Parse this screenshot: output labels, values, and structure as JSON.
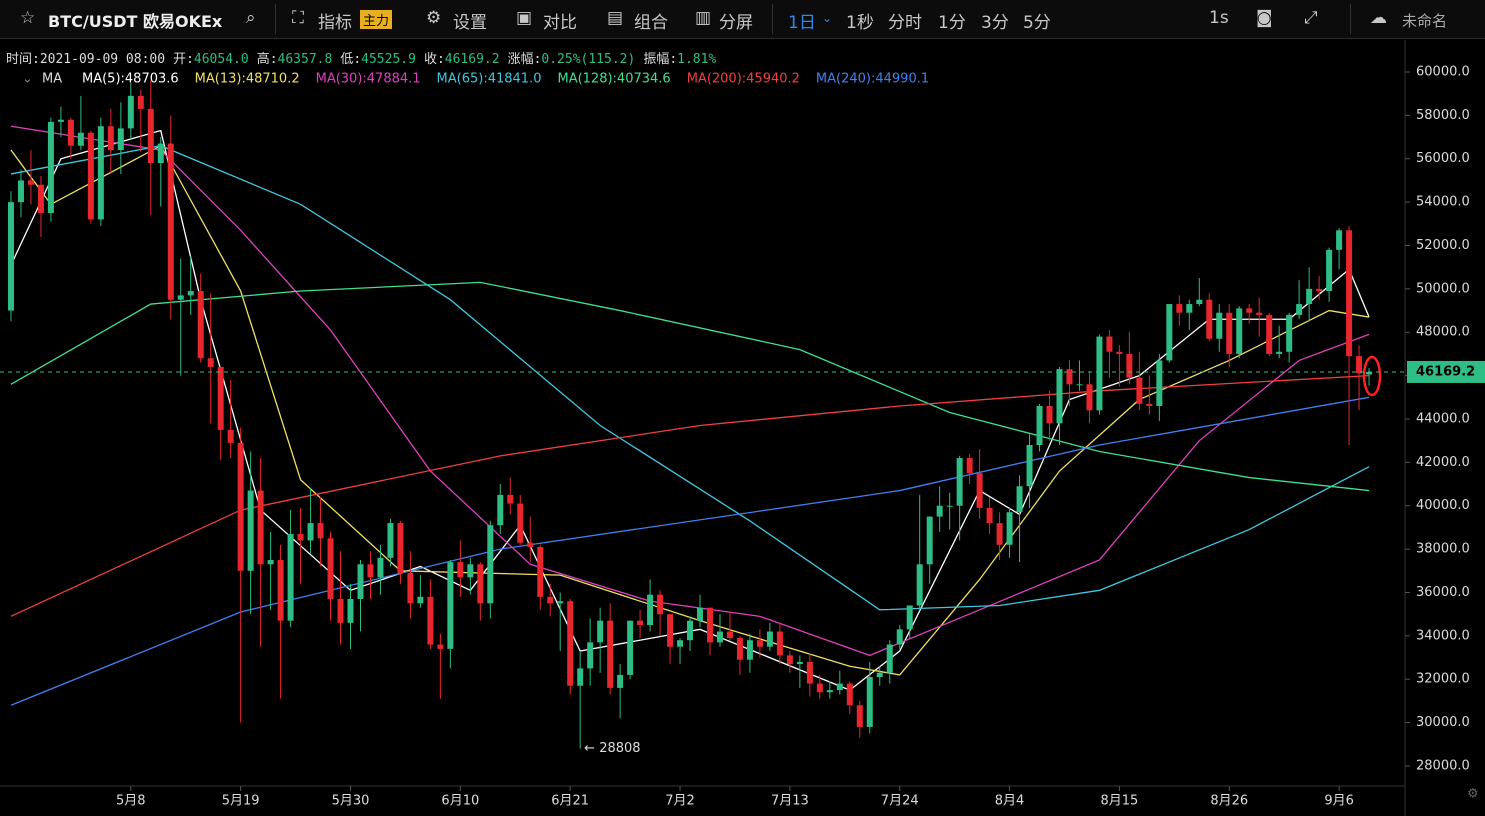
{
  "toolbar": {
    "symbol": "BTC/USDT 欧易OKEx",
    "items": [
      "指标",
      "设置",
      "对比",
      "组合",
      "分屏"
    ],
    "badge": "主力",
    "intervals": [
      "1日",
      "1秒",
      "分时",
      "1分",
      "3分",
      "5分"
    ],
    "speed": "1s",
    "layout_name": "未命名"
  },
  "info": [
    {
      "label": "时间:",
      "value": "2021-09-09 08:00"
    },
    {
      "label": "开:",
      "value": "46054.0"
    },
    {
      "label": "高:",
      "value": "46357.8"
    },
    {
      "label": "低:",
      "value": "45525.9"
    },
    {
      "label": "收:",
      "value": "46169.2"
    },
    {
      "label": "涨幅:",
      "value": "0.25%(115.2)"
    },
    {
      "label": "振幅:",
      "value": "1.81%"
    }
  ],
  "chart_data": {
    "type": "candlestick",
    "indicator": "MA",
    "up_color": "#2ebd85",
    "down_color": "#e8262d",
    "xlim": [
      -1.1,
      139.6
    ],
    "ylim": [
      27077,
      61291
    ],
    "xticks": [
      {
        "value": 12,
        "label": "5月8"
      },
      {
        "value": 23,
        "label": "5月19"
      },
      {
        "value": 34,
        "label": "5月30"
      },
      {
        "value": 45,
        "label": "6月10"
      },
      {
        "value": 56,
        "label": "6月21"
      },
      {
        "value": 67,
        "label": "7月2"
      },
      {
        "value": 78,
        "label": "7月13"
      },
      {
        "value": 89,
        "label": "7月24"
      },
      {
        "value": 100,
        "label": "8月4"
      },
      {
        "value": 111,
        "label": "8月15"
      },
      {
        "value": 122,
        "label": "8月26"
      },
      {
        "value": 133,
        "label": "9月6"
      }
    ],
    "yticks": [
      {
        "value": 28000,
        "label": "28000.0"
      },
      {
        "value": 30000,
        "label": "30000.0"
      },
      {
        "value": 32000,
        "label": "32000.0"
      },
      {
        "value": 34000,
        "label": "34000.0"
      },
      {
        "value": 36000,
        "label": "36000.0"
      },
      {
        "value": 38000,
        "label": "38000.0"
      },
      {
        "value": 40000,
        "label": "40000.0"
      },
      {
        "value": 42000,
        "label": "42000.0"
      },
      {
        "value": 44000,
        "label": "44000.0"
      },
      {
        "value": 46000,
        "label": "46000.0"
      },
      {
        "value": 48000,
        "label": "48000.0"
      },
      {
        "value": 50000,
        "label": "50000.0"
      },
      {
        "value": 52000,
        "label": "52000.0"
      },
      {
        "value": 54000,
        "label": "54000.0"
      },
      {
        "value": 56000,
        "label": "56000.0"
      },
      {
        "value": 58000,
        "label": "58000.0"
      },
      {
        "value": 60000,
        "label": "60000.0"
      }
    ],
    "candles": [
      [
        49000,
        54500,
        48500,
        54000
      ],
      [
        54000,
        55500,
        53300,
        55000
      ],
      [
        55000,
        56400,
        53900,
        54800
      ],
      [
        54800,
        55200,
        52400,
        53500
      ],
      [
        53500,
        57900,
        53100,
        57700
      ],
      [
        57700,
        58400,
        57000,
        57800
      ],
      [
        57800,
        57900,
        56000,
        56600
      ],
      [
        56600,
        58900,
        56400,
        57200
      ],
      [
        57200,
        57300,
        53000,
        53200
      ],
      [
        53200,
        57900,
        52900,
        57500
      ],
      [
        57500,
        58300,
        55300,
        56400
      ],
      [
        56400,
        58600,
        55300,
        57400
      ],
      [
        57400,
        59500,
        56900,
        58900
      ],
      [
        58900,
        59200,
        56300,
        58300
      ],
      [
        58300,
        59600,
        53400,
        55800
      ],
      [
        55800,
        57000,
        53800,
        56700
      ],
      [
        56700,
        58000,
        48600,
        49500
      ],
      [
        49500,
        51400,
        46000,
        49700
      ],
      [
        49700,
        51500,
        48800,
        49900
      ],
      [
        49900,
        50700,
        46600,
        46800
      ],
      [
        46800,
        49800,
        43800,
        46400
      ],
      [
        46400,
        46400,
        42100,
        43500
      ],
      [
        43500,
        45800,
        42200,
        42900
      ],
      [
        42900,
        43600,
        30000,
        37000
      ],
      [
        37000,
        42500,
        35000,
        40700
      ],
      [
        40700,
        42200,
        33500,
        37300
      ],
      [
        37300,
        38800,
        35200,
        37500
      ],
      [
        37500,
        38200,
        31100,
        34700
      ],
      [
        34700,
        39800,
        34400,
        38700
      ],
      [
        38700,
        39900,
        36400,
        38400
      ],
      [
        38400,
        40800,
        37800,
        39200
      ],
      [
        39200,
        40400,
        37200,
        38500
      ],
      [
        38500,
        38800,
        34700,
        35700
      ],
      [
        35700,
        37900,
        33600,
        34600
      ],
      [
        34600,
        36400,
        33400,
        35700
      ],
      [
        35700,
        37500,
        34200,
        37300
      ],
      [
        37300,
        37900,
        35700,
        36700
      ],
      [
        36700,
        38200,
        35900,
        37600
      ],
      [
        37600,
        39400,
        37200,
        39200
      ],
      [
        39200,
        39300,
        36400,
        36900
      ],
      [
        36900,
        37900,
        34800,
        35500
      ],
      [
        35500,
        36800,
        35300,
        35800
      ],
      [
        35800,
        36600,
        33400,
        33600
      ],
      [
        33600,
        34100,
        31100,
        33400
      ],
      [
        33400,
        37500,
        32500,
        37400
      ],
      [
        37400,
        38400,
        35800,
        36700
      ],
      [
        36700,
        37600,
        35900,
        37300
      ],
      [
        37300,
        37400,
        34700,
        35500
      ],
      [
        35500,
        39300,
        34800,
        39100
      ],
      [
        39100,
        41000,
        38700,
        40500
      ],
      [
        40500,
        41300,
        39600,
        40100
      ],
      [
        40100,
        40500,
        38200,
        38300
      ],
      [
        38300,
        39500,
        37400,
        38100
      ],
      [
        38100,
        38200,
        35200,
        35800
      ],
      [
        35800,
        36400,
        34900,
        35500
      ],
      [
        35500,
        36000,
        33300,
        35600
      ],
      [
        35600,
        35700,
        31300,
        31700
      ],
      [
        31700,
        33300,
        28808,
        32500
      ],
      [
        32500,
        34800,
        31700,
        33700
      ],
      [
        33700,
        35300,
        32300,
        34700
      ],
      [
        34700,
        35500,
        31300,
        31600
      ],
      [
        31600,
        32700,
        30200,
        32200
      ],
      [
        32200,
        34700,
        32000,
        34700
      ],
      [
        34700,
        35200,
        33900,
        34500
      ],
      [
        34500,
        36600,
        34200,
        35900
      ],
      [
        35900,
        36100,
        34000,
        35000
      ],
      [
        35000,
        35000,
        32700,
        33500
      ],
      [
        33500,
        33900,
        32700,
        33800
      ],
      [
        33800,
        34900,
        33300,
        34700
      ],
      [
        34700,
        35900,
        34400,
        35300
      ],
      [
        35300,
        35300,
        33100,
        33700
      ],
      [
        33700,
        35000,
        33500,
        34200
      ],
      [
        34200,
        35100,
        33800,
        33900
      ],
      [
        33900,
        34000,
        32200,
        32900
      ],
      [
        32900,
        34100,
        32300,
        33800
      ],
      [
        33800,
        34300,
        33000,
        33500
      ],
      [
        33500,
        34600,
        33300,
        34200
      ],
      [
        34200,
        34600,
        32700,
        33100
      ],
      [
        33100,
        33300,
        32300,
        32700
      ],
      [
        32700,
        33100,
        31600,
        32800
      ],
      [
        32800,
        33200,
        31200,
        31800
      ],
      [
        31800,
        32200,
        31100,
        31400
      ],
      [
        31400,
        31900,
        31100,
        31500
      ],
      [
        31500,
        32400,
        31300,
        31800
      ],
      [
        31800,
        31900,
        30400,
        30800
      ],
      [
        30800,
        31000,
        29300,
        29800
      ],
      [
        29800,
        32800,
        29500,
        32100
      ],
      [
        32100,
        32600,
        31700,
        32300
      ],
      [
        32300,
        33800,
        31800,
        33600
      ],
      [
        33600,
        34500,
        33400,
        34300
      ],
      [
        34300,
        35400,
        33900,
        35400
      ],
      [
        35400,
        40500,
        35200,
        37300
      ],
      [
        37300,
        39500,
        36400,
        39500
      ],
      [
        39500,
        40900,
        38800,
        40000
      ],
      [
        40000,
        40600,
        38900,
        40000
      ],
      [
        40000,
        42300,
        38400,
        42200
      ],
      [
        42200,
        42400,
        41000,
        41500
      ],
      [
        41500,
        42600,
        39400,
        39900
      ],
      [
        39900,
        40400,
        38700,
        39200
      ],
      [
        39200,
        39700,
        37500,
        38200
      ],
      [
        38200,
        39900,
        37600,
        39700
      ],
      [
        39700,
        41400,
        37400,
        40900
      ],
      [
        40900,
        43300,
        39900,
        42800
      ],
      [
        42800,
        44700,
        42500,
        44600
      ],
      [
        44600,
        45300,
        43000,
        43800
      ],
      [
        43800,
        46400,
        42800,
        46300
      ],
      [
        46300,
        46700,
        44600,
        45600
      ],
      [
        45600,
        46700,
        45300,
        45600
      ],
      [
        45600,
        46200,
        43800,
        44400
      ],
      [
        44400,
        47900,
        44200,
        47800
      ],
      [
        47800,
        48100,
        45900,
        47100
      ],
      [
        47100,
        47400,
        45500,
        47000
      ],
      [
        47000,
        48000,
        45600,
        45900
      ],
      [
        45900,
        47100,
        44400,
        44700
      ],
      [
        44700,
        46000,
        44200,
        44600
      ],
      [
        44600,
        47000,
        43900,
        46700
      ],
      [
        46700,
        49300,
        46600,
        49300
      ],
      [
        49300,
        49700,
        48300,
        48900
      ],
      [
        48900,
        49500,
        48100,
        49300
      ],
      [
        49300,
        50500,
        49200,
        49500
      ],
      [
        49500,
        49800,
        47600,
        47700
      ],
      [
        47700,
        49300,
        47100,
        48900
      ],
      [
        48900,
        49300,
        46400,
        47000
      ],
      [
        47000,
        49200,
        46800,
        49100
      ],
      [
        49100,
        49300,
        48400,
        48900
      ],
      [
        48900,
        49600,
        47800,
        48800
      ],
      [
        48800,
        48900,
        46900,
        47000
      ],
      [
        47000,
        48300,
        46800,
        47100
      ],
      [
        47100,
        48900,
        46600,
        48800
      ],
      [
        48800,
        50400,
        48600,
        49300
      ],
      [
        49300,
        51000,
        48500,
        50000
      ],
      [
        50000,
        50600,
        49500,
        49900
      ],
      [
        49900,
        51900,
        49400,
        51800
      ],
      [
        51800,
        52800,
        50900,
        52700
      ],
      [
        52700,
        52900,
        42800,
        46900
      ],
      [
        46900,
        47400,
        44400,
        46100
      ],
      [
        46054.0,
        46357.8,
        45525.9,
        46169.2
      ]
    ],
    "series": [
      {
        "name": "MA(5)",
        "label": "MA(5):48703.6",
        "color": "#ffffff",
        "x": [
          0,
          5,
          15,
          19,
          25,
          34,
          41,
          46,
          51,
          57,
          69,
          84,
          89,
          97,
          101,
          106,
          113,
          120,
          128,
          134,
          136
        ],
        "values": [
          51100,
          56000,
          57300,
          49500,
          39800,
          36100,
          37200,
          36100,
          39100,
          33300,
          34300,
          31500,
          33300,
          40700,
          39600,
          44900,
          46000,
          48600,
          48600,
          50900,
          48700
        ]
      },
      {
        "name": "MA(13)",
        "label": "MA(13):48710.2",
        "color": "#f0e060",
        "x": [
          0,
          4,
          15,
          23,
          29,
          39,
          55,
          69,
          84,
          89,
          97,
          105,
          113,
          122,
          132,
          136
        ],
        "values": [
          56400,
          53900,
          56600,
          49900,
          41200,
          37000,
          36800,
          34700,
          32600,
          32200,
          36600,
          41600,
          44900,
          46700,
          49000,
          48700
        ]
      },
      {
        "name": "MA(30)",
        "label": "MA(30):47884.1",
        "color": "#e040c0",
        "x": [
          0,
          15,
          23,
          32,
          42,
          52,
          64,
          75,
          86,
          97,
          109,
          119,
          129,
          136
        ],
        "values": [
          57500,
          56400,
          52700,
          48100,
          41600,
          37300,
          35600,
          34900,
          33100,
          35200,
          37500,
          43000,
          46700,
          47900
        ]
      },
      {
        "name": "MA(65)",
        "label": "MA(65):41841.0",
        "color": "#40c8e0",
        "x": [
          0,
          15,
          29,
          44,
          59,
          74,
          87,
          99,
          109,
          124,
          136
        ],
        "values": [
          55300,
          56600,
          53900,
          49500,
          43700,
          39300,
          35200,
          35400,
          36100,
          38900,
          41800
        ]
      },
      {
        "name": "MA(128)",
        "label": "MA(128):40734.6",
        "color": "#40e090",
        "x": [
          0,
          14,
          29,
          47,
          61,
          79,
          94,
          109,
          124,
          136
        ],
        "values": [
          45600,
          49300,
          49900,
          50300,
          49000,
          47200,
          44300,
          42500,
          41300,
          40700
        ]
      },
      {
        "name": "MA(200)",
        "label": "MA(200):45940.2",
        "color": "#f04040",
        "x": [
          0,
          23,
          49,
          69,
          89,
          109,
          136
        ],
        "values": [
          34900,
          39800,
          42300,
          43700,
          44600,
          45300,
          46000
        ]
      },
      {
        "name": "MA(240)",
        "label": "MA(240):44990.1",
        "color": "#4080f0",
        "x": [
          0,
          23,
          49,
          89,
          109,
          136
        ],
        "values": [
          30800,
          35100,
          38000,
          40700,
          42800,
          45000
        ]
      }
    ],
    "last_price": {
      "value": 46169.2,
      "label": "46169.2"
    },
    "annotation": {
      "candle": 57,
      "text": "← 28808"
    }
  }
}
